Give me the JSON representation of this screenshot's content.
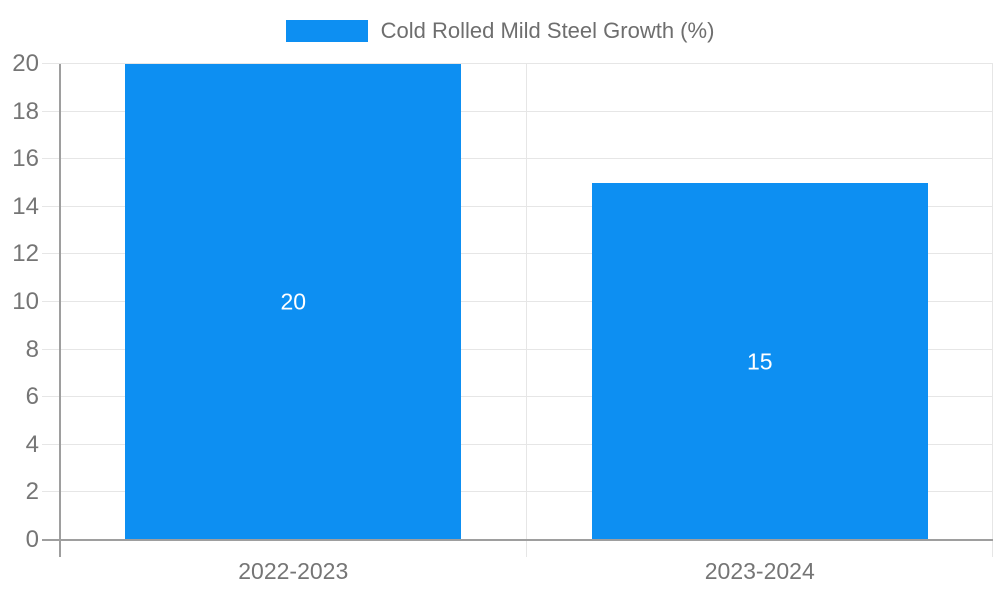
{
  "chart_data": {
    "type": "bar",
    "title": "",
    "legend": {
      "label": "Cold Rolled Mild Steel Growth (%)",
      "position": "top"
    },
    "categories": [
      "2022-2023",
      "2023-2024"
    ],
    "series": [
      {
        "name": "Cold Rolled Mild Steel Growth (%)",
        "values": [
          20,
          15
        ]
      }
    ],
    "data_labels": [
      "20",
      "15"
    ],
    "xlabel": "",
    "ylabel": "",
    "ylim": [
      0,
      20
    ],
    "ytick_step": 2,
    "ytick_labels": [
      "0",
      "2",
      "4",
      "6",
      "8",
      "10",
      "12",
      "14",
      "16",
      "18",
      "20"
    ],
    "grid": true,
    "colors": {
      "bar": "#0d8ff2",
      "grid_line": "#e6e6e6",
      "axis_line": "#9e9e9e",
      "tick_label": "#757575",
      "legend_text": "#6e6e6e",
      "data_label": "#ffffff",
      "background": "#ffffff"
    }
  }
}
